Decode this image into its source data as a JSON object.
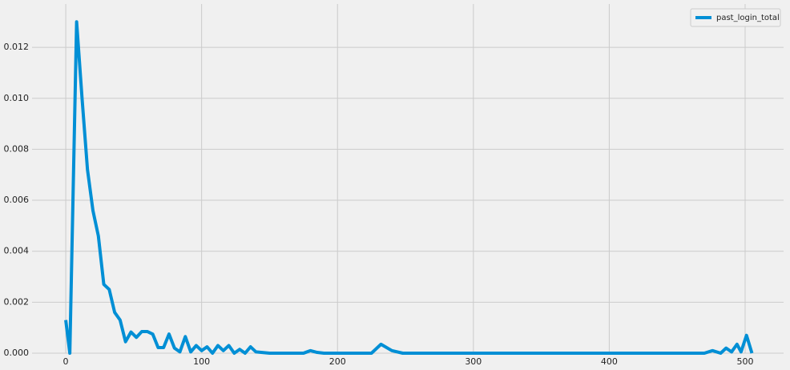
{
  "chart_data": {
    "type": "line",
    "x": [
      0,
      3,
      8,
      12,
      16,
      20,
      24,
      28,
      32,
      36,
      40,
      44,
      48,
      52,
      56,
      60,
      64,
      68,
      72,
      76,
      80,
      84,
      88,
      92,
      96,
      100,
      104,
      108,
      112,
      116,
      120,
      124,
      128,
      132,
      136,
      140,
      150,
      175,
      180,
      185,
      190,
      225,
      232,
      240,
      248,
      300,
      400,
      470,
      476,
      482,
      486,
      490,
      494,
      497,
      501,
      505
    ],
    "series": [
      {
        "name": "past_login_total",
        "color": "#008fd5",
        "values": [
          0.0013,
          0.0,
          0.013,
          0.01,
          0.0072,
          0.0056,
          0.0046,
          0.0027,
          0.0025,
          0.0016,
          0.0013,
          0.00045,
          0.00083,
          0.00062,
          0.00085,
          0.00085,
          0.00075,
          0.00022,
          0.00022,
          0.00075,
          0.0002,
          5e-05,
          0.00065,
          5e-05,
          0.0003,
          0.0001,
          0.00025,
          0.0,
          0.0003,
          0.0001,
          0.0003,
          0.0,
          0.00015,
          0.0,
          0.00025,
          5e-05,
          0.0,
          0.0,
          0.0001,
          3e-05,
          0.0,
          0.0,
          0.00035,
          0.0001,
          0.0,
          0.0,
          0.0,
          0.0,
          0.0001,
          0.0,
          0.0002,
          5e-05,
          0.00035,
          5e-05,
          0.0007,
          0.0
        ]
      }
    ],
    "xlim": [
      -24.8,
      528.3
    ],
    "ylim": [
      0,
      0.0137
    ],
    "xticks": [
      0,
      100,
      200,
      300,
      400,
      500
    ],
    "yticks": [
      {
        "value": 0,
        "label": "0.000"
      },
      {
        "value": 0.002,
        "label": "0.002"
      },
      {
        "value": 0.004,
        "label": "0.004"
      },
      {
        "value": 0.006,
        "label": "0.006"
      },
      {
        "value": 0.008,
        "label": "0.008"
      },
      {
        "value": 0.01,
        "label": "0.010"
      },
      {
        "value": 0.012,
        "label": "0.012"
      }
    ],
    "grid": true,
    "legend": "upper right"
  }
}
